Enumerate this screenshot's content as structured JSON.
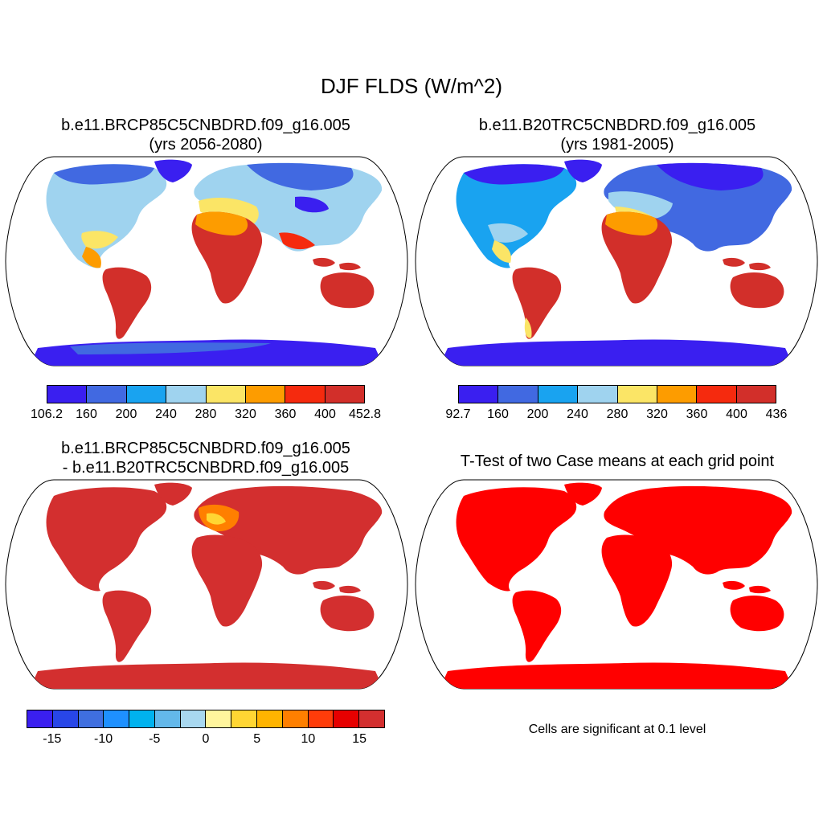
{
  "title": "DJF FLDS (W/m^2)",
  "panels": {
    "p1": {
      "title_line1": "b.e11.BRCP85C5CNBDRD.f09_g16.005",
      "title_line2": "(yrs 2056-2080)"
    },
    "p2": {
      "title_line1": "b.e11.B20TRC5CNBDRD.f09_g16.005",
      "title_line2": "(yrs 1981-2005)"
    },
    "p3": {
      "title_line1": "b.e11.BRCP85C5CNBDRD.f09_g16.005",
      "title_line2": "- b.e11.B20TRC5CNBDRD.f09_g16.005"
    },
    "p4": {
      "title": "T-Test of two Case means at each grid point",
      "note": "Cells are significant at 0.1 level"
    }
  },
  "colorbars": {
    "cb1": {
      "labels": [
        "106.2",
        "160",
        "200",
        "240",
        "280",
        "320",
        "360",
        "400",
        "452.8"
      ],
      "colors": [
        "#3a1ff0",
        "#4169e1",
        "#19a3f0",
        "#9fd3ef",
        "#fbe566",
        "#fd9c00",
        "#f52a0e",
        "#d22f2a"
      ]
    },
    "cb2": {
      "labels": [
        "92.7",
        "160",
        "200",
        "240",
        "280",
        "320",
        "360",
        "400",
        "436"
      ],
      "colors": [
        "#3a1ff0",
        "#4169e1",
        "#19a3f0",
        "#9fd3ef",
        "#fbe566",
        "#fd9c00",
        "#f52a0e",
        "#d22f2a"
      ]
    },
    "cb3": {
      "labels": [
        "-15",
        "-10",
        "-5",
        "0",
        "5",
        "10",
        "15"
      ],
      "colors": [
        "#3a1ff0",
        "#2846e8",
        "#3f6fe0",
        "#1e90ff",
        "#00b2ee",
        "#63b8ea",
        "#a8d8f0",
        "#fff59d",
        "#ffd633",
        "#ffb400",
        "#ff7f00",
        "#ff3c0a",
        "#e60000",
        "#d32f2f"
      ]
    }
  },
  "chart_data": [
    {
      "type": "heatmap",
      "title": "b.e11.BRCP85C5CNBDRD.f09_g16.005 (yrs 2056-2080)",
      "levels": [
        106.2,
        160,
        200,
        240,
        280,
        320,
        360,
        400,
        452.8
      ]
    },
    {
      "type": "heatmap",
      "title": "b.e11.B20TRC5CNBDRD.f09_g16.005 (yrs 1981-2005)",
      "levels": [
        92.7,
        160,
        200,
        240,
        280,
        320,
        360,
        400,
        436
      ]
    },
    {
      "type": "heatmap",
      "title": "b.e11.BRCP85C5CNBDRD.f09_g16.005 - b.e11.B20TRC5CNBDRD.f09_g16.005",
      "ticks": [
        -15,
        -10,
        -5,
        0,
        5,
        10,
        15
      ]
    },
    {
      "type": "heatmap",
      "title": "T-Test of two Case means at each grid point"
    }
  ]
}
